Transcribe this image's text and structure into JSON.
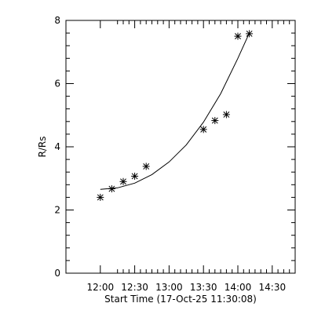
{
  "chart_data": {
    "type": "scatter",
    "title": "",
    "xlabel": "Start Time (17-Oct-25 11:30:08)",
    "ylabel": "R/Rs",
    "xlim": [
      "11:30",
      "14:50"
    ],
    "ylim": [
      0,
      8
    ],
    "x_ticks": [
      "12:00",
      "12:30",
      "13:00",
      "13:30",
      "14:00",
      "14:30"
    ],
    "x_tick_minutes": [
      720,
      750,
      780,
      810,
      840,
      870
    ],
    "y_ticks": [
      0,
      2,
      4,
      6,
      8
    ],
    "grid": false,
    "series": [
      {
        "marker": "asterisk",
        "x": [
          "12:00",
          "12:10",
          "12:20",
          "12:30",
          "12:40",
          "13:30",
          "13:40",
          "13:50",
          "14:00",
          "14:10"
        ],
        "y": [
          2.4,
          2.67,
          2.9,
          3.07,
          3.38,
          4.55,
          4.83,
          5.02,
          7.5,
          7.58
        ]
      },
      {
        "type": "line",
        "x": [
          "12:00",
          "12:15",
          "12:30",
          "12:45",
          "13:00",
          "13:15",
          "13:30",
          "13:45",
          "14:00",
          "14:10"
        ],
        "y": [
          2.65,
          2.7,
          2.85,
          3.12,
          3.52,
          4.06,
          4.78,
          5.68,
          6.8,
          7.6
        ]
      }
    ]
  }
}
